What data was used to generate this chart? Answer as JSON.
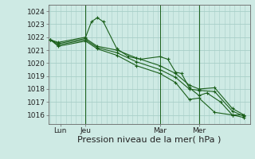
{
  "bg_color": "#ceeae4",
  "grid_color": "#a8cfc8",
  "line_color": "#1a5f1a",
  "ylabel_ticks": [
    1016,
    1017,
    1018,
    1019,
    1020,
    1021,
    1022,
    1023,
    1024
  ],
  "ylim": [
    1015.3,
    1024.5
  ],
  "xlabel": "Pression niveau de la mer( hPa )",
  "xlabel_fontsize": 8,
  "tick_fontsize": 6.5,
  "xtick_labels": [
    "Lun",
    "Jeu",
    "Mar",
    "Mer"
  ],
  "xtick_positions": [
    0.05,
    0.18,
    0.56,
    0.76
  ],
  "vline_positions": [
    0.18,
    0.56,
    0.76
  ],
  "series": [
    [
      [
        0.0,
        0.04,
        0.18,
        0.21,
        0.24,
        0.27,
        0.34,
        0.4,
        0.46,
        0.56,
        0.6,
        0.64,
        0.67,
        0.71,
        0.76,
        0.8,
        0.87,
        0.93,
        0.99
      ],
      [
        1021.8,
        1021.6,
        1022.0,
        1023.2,
        1023.5,
        1023.2,
        1021.1,
        1020.5,
        1020.3,
        1020.5,
        1020.3,
        1019.3,
        1019.2,
        1018.1,
        1017.5,
        1017.7,
        1017.0,
        1016.0,
        1016.0
      ]
    ],
    [
      [
        0.0,
        0.04,
        0.18,
        0.24,
        0.34,
        0.44,
        0.56,
        0.64,
        0.71,
        0.76,
        0.84,
        0.93,
        0.99
      ],
      [
        1021.8,
        1021.5,
        1021.9,
        1021.3,
        1021.0,
        1020.4,
        1019.8,
        1019.2,
        1018.3,
        1018.0,
        1018.1,
        1016.5,
        1016.0
      ]
    ],
    [
      [
        0.0,
        0.04,
        0.18,
        0.24,
        0.34,
        0.44,
        0.56,
        0.64,
        0.71,
        0.76,
        0.84,
        0.93,
        0.99
      ],
      [
        1021.8,
        1021.4,
        1021.8,
        1021.2,
        1020.8,
        1020.1,
        1019.5,
        1018.9,
        1018.0,
        1017.9,
        1017.8,
        1016.3,
        1015.9
      ]
    ],
    [
      [
        0.0,
        0.04,
        0.18,
        0.24,
        0.34,
        0.44,
        0.56,
        0.64,
        0.71,
        0.76,
        0.84,
        0.93,
        0.99
      ],
      [
        1021.8,
        1021.3,
        1021.7,
        1021.1,
        1020.6,
        1019.8,
        1019.2,
        1018.5,
        1017.2,
        1017.3,
        1016.2,
        1016.0,
        1015.8
      ]
    ]
  ]
}
